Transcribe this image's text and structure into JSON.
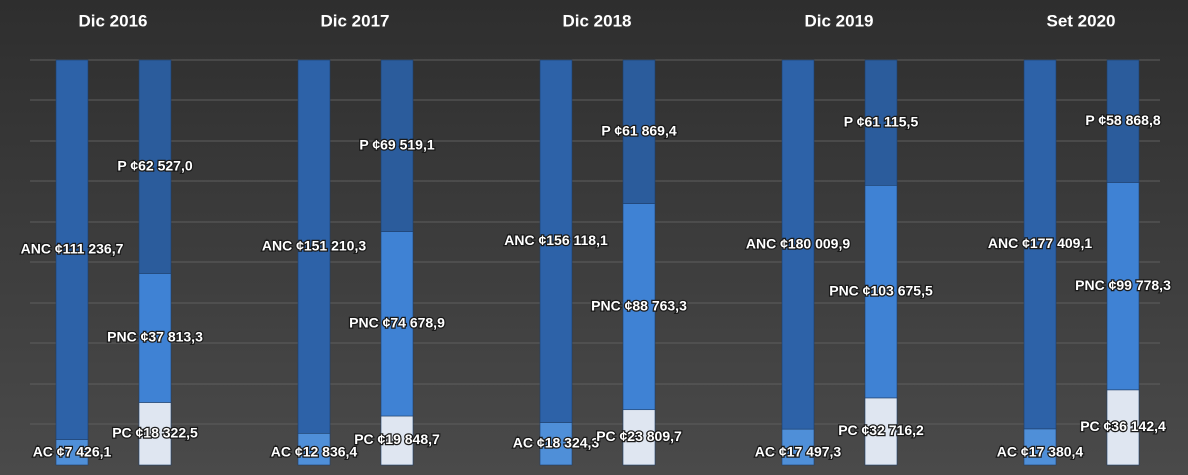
{
  "chart_data": {
    "type": "stacked-bar-100",
    "categories": [
      "Dic 2016",
      "Dic 2017",
      "Dic 2018",
      "Dic 2019",
      "Set 2020"
    ],
    "bars": [
      {
        "series": [
          {
            "color": "#4f8fd8",
            "values": [
              7426.1,
              12836.4,
              18324.3,
              17497.3,
              17380.4
            ],
            "value_labels": [
              "AC ¢7 426,1",
              "AC ¢12 836,4",
              "AC ¢18 324,3",
              "AC ¢17 497,3",
              "AC ¢17 380,4"
            ]
          },
          {
            "color": "#2d62a8",
            "values": [
              111236.7,
              151210.3,
              156118.1,
              180009.9,
              177409.1
            ],
            "value_labels": [
              "ANC ¢111 236,7",
              "ANC ¢151 210,3",
              "ANC ¢156 118,1",
              "ANC ¢180 009,9",
              "ANC ¢177 409,1"
            ]
          }
        ]
      },
      {
        "series": [
          {
            "color": "#dfe6f1",
            "values": [
              18322.5,
              19848.7,
              23809.7,
              32716.2,
              36142.4
            ],
            "value_labels": [
              "PC ¢18 322,5",
              "PC ¢19 848,7",
              "PC ¢23 809,7",
              "PC ¢32 716,2",
              "PC ¢36 142,4"
            ]
          },
          {
            "color": "#3f82d4",
            "values": [
              37813.3,
              74678.9,
              88763.3,
              103675.5,
              99778.3
            ],
            "value_labels": [
              "PNC ¢37 813,3",
              "PNC ¢74 678,9",
              "PNC ¢88 763,3",
              "PNC ¢103 675,5",
              "PNC ¢99 778,3"
            ]
          },
          {
            "color": "#2b5c9c",
            "values": [
              62527.0,
              69519.1,
              61869.4,
              61115.5,
              58868.8
            ],
            "value_labels": [
              "P ¢62 527,0",
              "P ¢69 519,1",
              "P ¢61 869,4",
              "P ¢61 115,5",
              "P ¢58 868,8"
            ]
          }
        ]
      }
    ]
  }
}
